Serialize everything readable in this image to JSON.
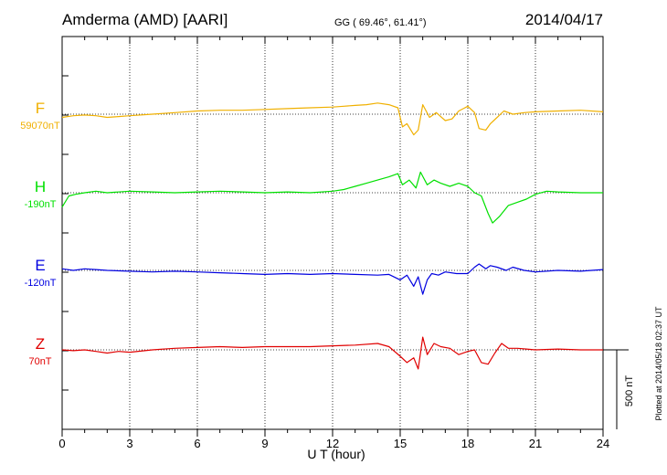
{
  "header": {
    "station": "Amderma (AMD)  [AARI]",
    "coords": "GG ( 69.46°,  61.41°)",
    "date": "2014/04/17"
  },
  "side_note": "Plotted at 2014/05/18 02:37 UT",
  "scale_bar_label": "500 nT",
  "colors": {
    "F": "#f0b000",
    "H": "#00e000",
    "E": "#0000e0",
    "Z": "#e00000"
  },
  "chart_data": {
    "type": "line",
    "xlabel": "U T (hour)",
    "xlim": [
      0,
      24
    ],
    "x_ticks": [
      "0",
      "3",
      "6",
      "9",
      "12",
      "15",
      "18",
      "21",
      "24"
    ],
    "scale_nT": 500,
    "series": [
      {
        "name": "F",
        "baseline_label": "59070nT",
        "x": [
          0,
          0.5,
          1,
          1.5,
          2,
          2.5,
          3,
          4,
          5,
          6,
          7,
          8,
          9,
          10,
          11,
          12,
          12.5,
          13,
          13.5,
          14,
          14.5,
          14.9,
          15.1,
          15.3,
          15.6,
          15.8,
          16,
          16.3,
          16.6,
          17,
          17.3,
          17.6,
          18,
          18.3,
          18.5,
          18.8,
          19,
          19.3,
          19.6,
          20,
          20.5,
          21,
          22,
          23,
          24
        ],
        "y": [
          -20,
          -10,
          -5,
          -10,
          -20,
          -15,
          -10,
          0,
          10,
          20,
          25,
          25,
          30,
          35,
          40,
          45,
          50,
          55,
          60,
          70,
          60,
          40,
          -80,
          -60,
          -130,
          -100,
          60,
          -20,
          10,
          -40,
          -30,
          20,
          50,
          10,
          -90,
          -100,
          -60,
          -20,
          20,
          0,
          10,
          15,
          20,
          25,
          15
        ]
      },
      {
        "name": "H",
        "baseline_label": "-190nT",
        "x": [
          0,
          0.3,
          0.6,
          1,
          1.5,
          2,
          3,
          4,
          5,
          6,
          7,
          8,
          9,
          10,
          11,
          12,
          12.5,
          13,
          13.5,
          14,
          14.5,
          14.9,
          15.1,
          15.4,
          15.7,
          15.9,
          16.2,
          16.5,
          16.8,
          17.2,
          17.6,
          18,
          18.3,
          18.6,
          18.9,
          19.1,
          19.4,
          19.8,
          20.2,
          20.6,
          21,
          21.5,
          22,
          23,
          24
        ],
        "y": [
          -90,
          -20,
          -10,
          0,
          10,
          0,
          10,
          5,
          0,
          5,
          10,
          5,
          0,
          5,
          0,
          10,
          20,
          40,
          60,
          80,
          100,
          120,
          50,
          80,
          30,
          130,
          50,
          80,
          60,
          40,
          60,
          40,
          0,
          -20,
          -130,
          -190,
          -150,
          -80,
          -60,
          -40,
          -10,
          10,
          5,
          0,
          0
        ]
      },
      {
        "name": "E",
        "baseline_label": "-120nT",
        "x": [
          0,
          0.5,
          1,
          1.5,
          2,
          3,
          4,
          5,
          6,
          7,
          8,
          9,
          10,
          11,
          12,
          13,
          14,
          14.5,
          15,
          15.3,
          15.6,
          15.8,
          16,
          16.2,
          16.4,
          16.7,
          17,
          17.5,
          18,
          18.3,
          18.5,
          18.8,
          19,
          19.3,
          19.7,
          20,
          20.5,
          21,
          22,
          23,
          24
        ],
        "y": [
          10,
          0,
          10,
          5,
          0,
          -5,
          -10,
          -5,
          -10,
          -15,
          -20,
          -25,
          -20,
          -25,
          -20,
          -25,
          -30,
          -25,
          -60,
          -30,
          -100,
          -40,
          -150,
          -60,
          -20,
          -30,
          -10,
          -20,
          -20,
          20,
          40,
          10,
          30,
          20,
          0,
          20,
          0,
          -10,
          0,
          -5,
          5
        ]
      },
      {
        "name": "Z",
        "baseline_label": "70nT",
        "x": [
          0,
          0.5,
          1,
          1.5,
          2,
          2.5,
          3,
          4,
          5,
          6,
          7,
          8,
          9,
          10,
          11,
          12,
          13,
          14,
          14.5,
          15,
          15.3,
          15.6,
          15.8,
          16,
          16.2,
          16.5,
          16.8,
          17.2,
          17.6,
          18,
          18.3,
          18.6,
          18.9,
          19.2,
          19.5,
          19.8,
          20.2,
          20.6,
          21,
          22,
          23,
          24
        ],
        "y": [
          0,
          -5,
          0,
          -10,
          -20,
          -10,
          -15,
          0,
          10,
          15,
          20,
          15,
          20,
          20,
          20,
          25,
          30,
          40,
          20,
          -40,
          -80,
          -50,
          -120,
          80,
          -30,
          40,
          20,
          10,
          -30,
          -10,
          0,
          -80,
          -90,
          -20,
          40,
          10,
          10,
          5,
          0,
          5,
          0,
          0
        ]
      }
    ]
  }
}
